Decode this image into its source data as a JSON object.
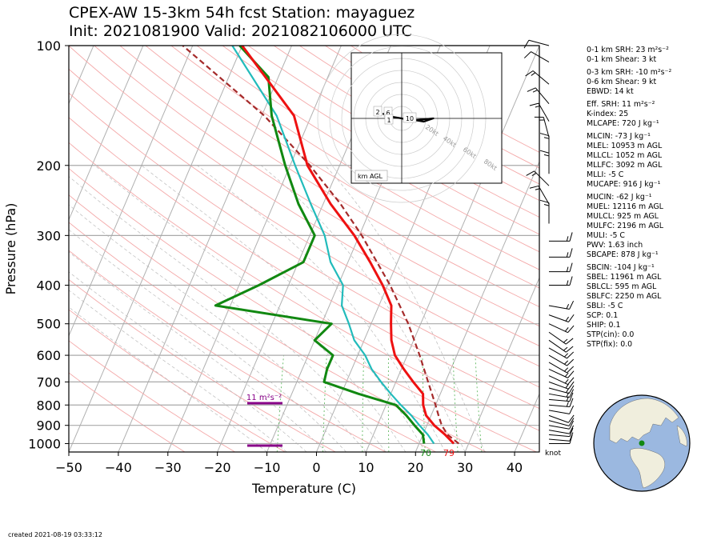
{
  "header": {
    "title_line1": "CPEX-AW 15-3km  54h fcst  Station: mayaguez",
    "title_line2": "Init: 2021081900  Valid: 2021082106000 UTC"
  },
  "footer": {
    "created": "created 2021-08-19 03:33:12"
  },
  "indices": [
    "0-1 km SRH: 23 m²s⁻²",
    "0-1 km Shear: 3 kt",
    "",
    "0-3 km SRH: -10 m²s⁻²",
    "0-6 km Shear: 9 kt",
    "EBWD: 14 kt",
    "",
    "Eff. SRH: 11 m²s⁻²",
    "K-index: 25",
    "MLCAPE: 720 J kg⁻¹",
    "",
    "MLCIN: -73 J kg⁻¹",
    "MLEL: 10953 m AGL",
    "MLLCL: 1052 m AGL",
    "MLLFC: 3092 m AGL",
    "MLLI: -5 C",
    "MUCAPE: 916 J kg⁻¹",
    "",
    "MUCIN: -62 J kg⁻¹",
    "MUEL: 12116 m AGL",
    "MULCL: 925 m AGL",
    "MULFC: 2196 m AGL",
    "MULI: -5 C",
    "PWV: 1.63 inch",
    "SBCAPE: 878 J kg⁻¹",
    "",
    "SBCIN: -104 J kg⁻¹",
    "SBEL: 11961 m AGL",
    "SBLCL: 595 m AGL",
    "SBLFC: 2250 m AGL",
    "SBLI: -5 C",
    "SCP: 0.1",
    "SHIP: 0.1",
    "STP(cin): 0.0",
    "STP(fix): 0.0"
  ],
  "colors": {
    "temperature": "#ee1111",
    "dewpoint": "#118811",
    "wetbulb": "#22bbbb",
    "parcel": "#a52a2a",
    "isobar": "#aaaaaa",
    "srh_marker": "#880088",
    "ocean": "#9bb8e0",
    "land": "#f0eedd"
  },
  "chart_data": {
    "type": "skewt",
    "xlabel": "Temperature (C)",
    "ylabel": "Pressure (hPa)",
    "xlim": [
      -50,
      45
    ],
    "ylim": [
      1050,
      100
    ],
    "x_ticks": [
      -50,
      -40,
      -30,
      -20,
      -10,
      0,
      10,
      20,
      30,
      40
    ],
    "y_ticks": [
      100,
      200,
      300,
      400,
      500,
      600,
      700,
      800,
      900,
      1000
    ],
    "surface_temp_label": "79",
    "surface_dewpoint_label": "70",
    "srh_annotation": "11 m²s⁻²",
    "wind_units_label": "knot",
    "temperature": [
      {
        "p": 1000,
        "t": 27.0
      },
      {
        "p": 950,
        "t": 24.5
      },
      {
        "p": 900,
        "t": 21.5
      },
      {
        "p": 850,
        "t": 19.0
      },
      {
        "p": 800,
        "t": 17.5
      },
      {
        "p": 750,
        "t": 16.5
      },
      {
        "p": 700,
        "t": 13.5
      },
      {
        "p": 650,
        "t": 10.5
      },
      {
        "p": 600,
        "t": 7.5
      },
      {
        "p": 550,
        "t": 5.5
      },
      {
        "p": 500,
        "t": 4.0
      },
      {
        "p": 450,
        "t": 2.5
      },
      {
        "p": 400,
        "t": -1.0
      },
      {
        "p": 350,
        "t": -5.5
      },
      {
        "p": 300,
        "t": -11.0
      },
      {
        "p": 250,
        "t": -18.5
      },
      {
        "p": 200,
        "t": -26.5
      },
      {
        "p": 150,
        "t": -33.5
      },
      {
        "p": 100,
        "t": -50.0
      }
    ],
    "dewpoint": [
      {
        "p": 1000,
        "t": 21.0
      },
      {
        "p": 950,
        "t": 20.0
      },
      {
        "p": 900,
        "t": 17.5
      },
      {
        "p": 850,
        "t": 15.0
      },
      {
        "p": 800,
        "t": 12.0
      },
      {
        "p": 750,
        "t": 3.5
      },
      {
        "p": 700,
        "t": -4.5
      },
      {
        "p": 650,
        "t": -5.0
      },
      {
        "p": 600,
        "t": -5.0
      },
      {
        "p": 550,
        "t": -10.0
      },
      {
        "p": 500,
        "t": -8.0
      },
      {
        "p": 450,
        "t": -33.0
      },
      {
        "p": 400,
        "t": -26.0
      },
      {
        "p": 350,
        "t": -19.0
      },
      {
        "p": 300,
        "t": -19.0
      },
      {
        "p": 250,
        "t": -25.0
      },
      {
        "p": 200,
        "t": -31.0
      },
      {
        "p": 150,
        "t": -38.0
      },
      {
        "p": 120,
        "t": -42.0
      },
      {
        "p": 100,
        "t": -50.5
      }
    ],
    "wetbulb": [
      {
        "p": 1000,
        "t": 23.0
      },
      {
        "p": 950,
        "t": 21.0
      },
      {
        "p": 900,
        "t": 18.5
      },
      {
        "p": 850,
        "t": 16.0
      },
      {
        "p": 800,
        "t": 13.0
      },
      {
        "p": 750,
        "t": 10.0
      },
      {
        "p": 700,
        "t": 7.0
      },
      {
        "p": 650,
        "t": 4.0
      },
      {
        "p": 600,
        "t": 1.5
      },
      {
        "p": 550,
        "t": -2.0
      },
      {
        "p": 500,
        "t": -4.5
      },
      {
        "p": 450,
        "t": -7.5
      },
      {
        "p": 400,
        "t": -9.0
      },
      {
        "p": 350,
        "t": -13.5
      },
      {
        "p": 300,
        "t": -17.0
      },
      {
        "p": 250,
        "t": -22.5
      },
      {
        "p": 200,
        "t": -29.0
      },
      {
        "p": 150,
        "t": -37.0
      },
      {
        "p": 100,
        "t": -52.0
      }
    ],
    "parcel": [
      {
        "p": 1000,
        "t": 28.0
      },
      {
        "p": 950,
        "t": 25.0
      },
      {
        "p": 900,
        "t": 23.0
      },
      {
        "p": 850,
        "t": 21.5
      },
      {
        "p": 800,
        "t": 20.0
      },
      {
        "p": 700,
        "t": 16.5
      },
      {
        "p": 600,
        "t": 12.5
      },
      {
        "p": 500,
        "t": 7.5
      },
      {
        "p": 400,
        "t": 0.5
      },
      {
        "p": 300,
        "t": -9.5
      },
      {
        "p": 250,
        "t": -16.5
      },
      {
        "p": 200,
        "t": -26.0
      },
      {
        "p": 150,
        "t": -39.5
      },
      {
        "p": 100,
        "t": -62.0
      }
    ],
    "winds": [
      {
        "p": 1000,
        "dir": 90,
        "spd": 10
      },
      {
        "p": 975,
        "dir": 95,
        "spd": 10
      },
      {
        "p": 950,
        "dir": 95,
        "spd": 10
      },
      {
        "p": 925,
        "dir": 100,
        "spd": 10
      },
      {
        "p": 900,
        "dir": 100,
        "spd": 10
      },
      {
        "p": 875,
        "dir": 105,
        "spd": 10
      },
      {
        "p": 850,
        "dir": 110,
        "spd": 10
      },
      {
        "p": 825,
        "dir": 100,
        "spd": 10
      },
      {
        "p": 800,
        "dir": 95,
        "spd": 15
      },
      {
        "p": 775,
        "dir": 95,
        "spd": 15
      },
      {
        "p": 750,
        "dir": 100,
        "spd": 15
      },
      {
        "p": 725,
        "dir": 105,
        "spd": 15
      },
      {
        "p": 700,
        "dir": 110,
        "spd": 15
      },
      {
        "p": 675,
        "dir": 115,
        "spd": 15
      },
      {
        "p": 650,
        "dir": 115,
        "spd": 15
      },
      {
        "p": 625,
        "dir": 120,
        "spd": 15
      },
      {
        "p": 600,
        "dir": 120,
        "spd": 15
      },
      {
        "p": 575,
        "dir": 120,
        "spd": 15
      },
      {
        "p": 550,
        "dir": 125,
        "spd": 15
      },
      {
        "p": 525,
        "dir": 125,
        "spd": 15
      },
      {
        "p": 500,
        "dir": 115,
        "spd": 15
      },
      {
        "p": 475,
        "dir": 110,
        "spd": 15
      },
      {
        "p": 450,
        "dir": 100,
        "spd": 15
      },
      {
        "p": 400,
        "dir": 90,
        "spd": 15
      },
      {
        "p": 370,
        "dir": 90,
        "spd": 15
      },
      {
        "p": 340,
        "dir": 90,
        "spd": 15
      },
      {
        "p": 310,
        "dir": 90,
        "spd": 15
      },
      {
        "p": 280,
        "dir": 0,
        "spd": 15
      },
      {
        "p": 250,
        "dir": 330,
        "spd": 15
      },
      {
        "p": 225,
        "dir": 315,
        "spd": 15
      },
      {
        "p": 210,
        "dir": 0,
        "spd": 15
      },
      {
        "p": 190,
        "dir": 0,
        "spd": 15
      },
      {
        "p": 170,
        "dir": 345,
        "spd": 15
      },
      {
        "p": 155,
        "dir": 330,
        "spd": 15
      },
      {
        "p": 140,
        "dir": 320,
        "spd": 15
      },
      {
        "p": 125,
        "dir": 310,
        "spd": 15
      },
      {
        "p": 110,
        "dir": 300,
        "spd": 10
      },
      {
        "p": 100,
        "dir": 285,
        "spd": 10
      }
    ],
    "hodograph": {
      "label": "km AGL",
      "ring_labels": [
        "20kt",
        "40kt",
        "60kt",
        "80kt"
      ],
      "height_markers": [
        "2",
        "6",
        "1",
        "10"
      ],
      "path": [
        {
          "u": -12,
          "v": 3
        },
        {
          "u": -6,
          "v": 1
        },
        {
          "u": 0,
          "v": 0
        },
        {
          "u": 4,
          "v": -1
        },
        {
          "u": 10,
          "v": -1
        },
        {
          "u": 20,
          "v": 0
        },
        {
          "u": 14,
          "v": -2
        },
        {
          "u": 8,
          "v": -1
        },
        {
          "u": 2,
          "v": 3
        }
      ]
    }
  }
}
